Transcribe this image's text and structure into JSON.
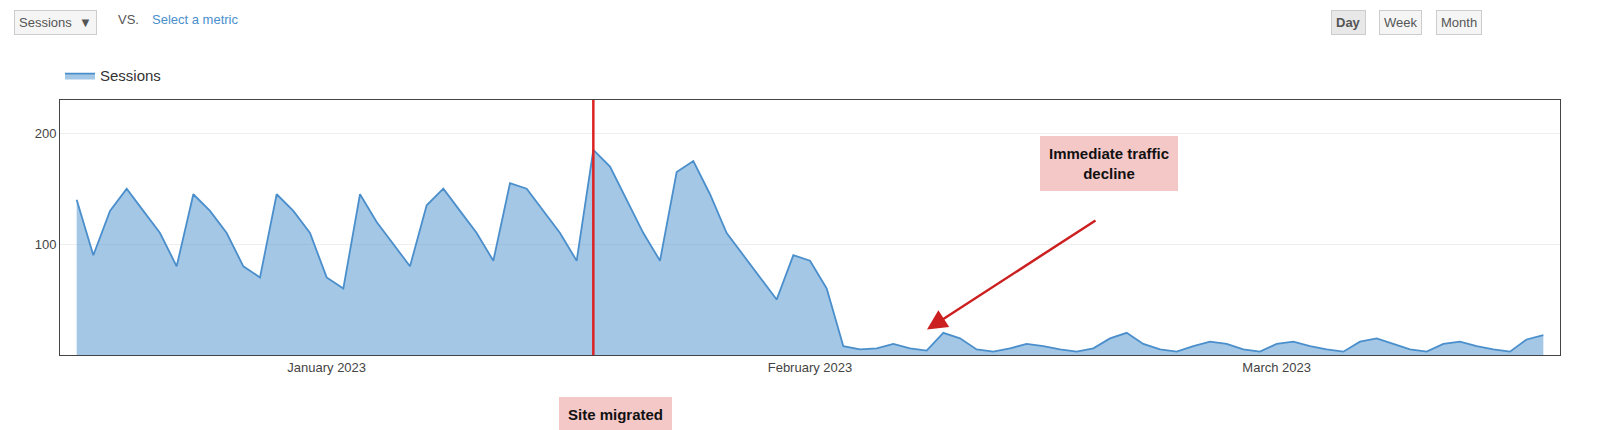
{
  "chart_data": {
    "type": "area",
    "x": [
      0,
      1,
      2,
      3,
      4,
      5,
      6,
      7,
      8,
      9,
      10,
      11,
      12,
      13,
      14,
      15,
      16,
      17,
      18,
      19,
      20,
      21,
      22,
      23,
      24,
      25,
      26,
      27,
      28,
      29,
      30,
      31,
      32,
      33,
      34,
      35,
      36,
      37,
      38,
      39,
      40,
      41,
      42,
      43,
      44,
      45,
      46,
      47,
      48,
      49,
      50,
      51,
      52,
      53,
      54,
      55,
      56,
      57,
      58,
      59,
      60,
      61,
      62,
      63,
      64,
      65,
      66,
      67,
      68,
      69,
      70,
      71,
      72,
      73,
      74,
      75,
      76,
      77,
      78,
      79,
      80,
      81,
      82,
      83,
      84,
      85,
      86,
      87,
      88
    ],
    "series": [
      {
        "name": "Sessions",
        "color": "#4a8fcc",
        "values": [
          140,
          90,
          130,
          150,
          130,
          110,
          80,
          145,
          130,
          110,
          80,
          70,
          145,
          130,
          110,
          70,
          60,
          145,
          120,
          100,
          80,
          135,
          150,
          130,
          110,
          85,
          155,
          150,
          130,
          110,
          85,
          185,
          170,
          140,
          110,
          85,
          165,
          175,
          145,
          110,
          90,
          70,
          50,
          90,
          85,
          60,
          8,
          5,
          6,
          10,
          6,
          4,
          20,
          15,
          5,
          3,
          6,
          10,
          8,
          5,
          3,
          6,
          15,
          20,
          10,
          5,
          3,
          8,
          12,
          10,
          5,
          3,
          10,
          12,
          8,
          5,
          3,
          12,
          15,
          10,
          5,
          3,
          10,
          12,
          8,
          5,
          3,
          14,
          18
        ]
      }
    ],
    "xlim": [
      -1,
      89
    ],
    "xticks": [
      {
        "value": 15,
        "label": "January 2023"
      },
      {
        "value": 44,
        "label": "February 2023"
      },
      {
        "value": 72,
        "label": "March 2023"
      }
    ],
    "ylim": [
      0,
      230
    ],
    "yticks": [
      100,
      200
    ],
    "grid": true,
    "legend": "top left",
    "annotations": [
      {
        "type": "control",
        "text": "Sessions  ▼"
      },
      {
        "type": "control",
        "text": "VS."
      },
      {
        "type": "control",
        "text": "Select a metric",
        "color": "#4a8fcc"
      },
      {
        "type": "control",
        "text": "Day"
      },
      {
        "type": "control",
        "text": "Week"
      },
      {
        "type": "control",
        "text": "Month"
      },
      {
        "type": "vline",
        "x": 31,
        "color": "#dd2222"
      },
      {
        "type": "callout",
        "text": "Immediate traffic\ndecline",
        "color": "#f5c8c8"
      },
      {
        "type": "callout",
        "text": "Site migrated",
        "color": "#f5c8c8"
      },
      {
        "type": "arrow",
        "color": "#cc2020"
      }
    ]
  }
}
